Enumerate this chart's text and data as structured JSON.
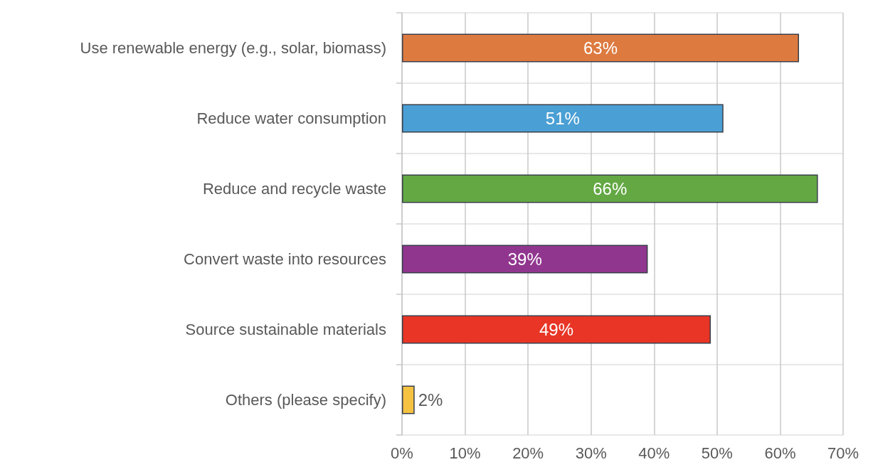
{
  "chart_data": {
    "type": "bar",
    "orientation": "horizontal",
    "categories": [
      "Use renewable energy (e.g., solar, biomass)",
      "Reduce water consumption",
      "Reduce and recycle waste",
      "Convert waste into resources",
      "Source sustainable materials",
      "Others (please specify)"
    ],
    "values": [
      63,
      51,
      66,
      39,
      49,
      2
    ],
    "colors": [
      "#dd7a40",
      "#4a9fd4",
      "#63a843",
      "#91368f",
      "#e83525",
      "#f5c242"
    ],
    "value_labels": [
      "63%",
      "51%",
      "66%",
      "39%",
      "49%",
      "2%"
    ],
    "xlim": [
      0,
      70
    ],
    "xticks": [
      {
        "value": 0,
        "label": "0%"
      },
      {
        "value": 10,
        "label": "10%"
      },
      {
        "value": 20,
        "label": "20%"
      },
      {
        "value": 30,
        "label": "30%"
      },
      {
        "value": 40,
        "label": "40%"
      },
      {
        "value": 50,
        "label": "50%"
      },
      {
        "value": 60,
        "label": "60%"
      },
      {
        "value": 70,
        "label": "70%"
      }
    ],
    "grid": true
  }
}
